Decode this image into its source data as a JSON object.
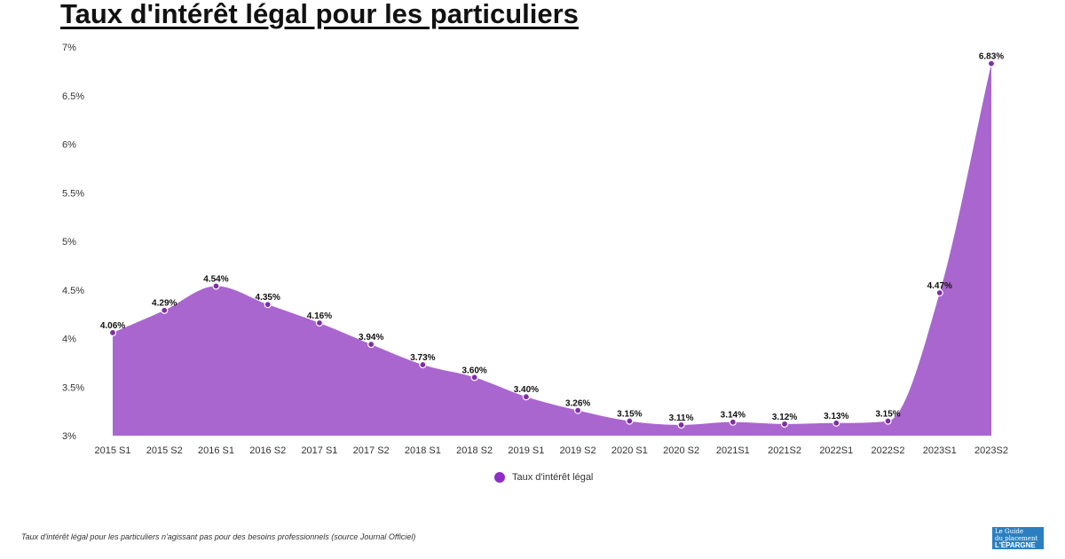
{
  "title": "Taux d'intérêt légal pour les particuliers",
  "footer": "Taux d'intérêt légal pour les particuliers n'agissant pas pour des besoins professionnels (source Journal Officiel)",
  "logo_text": "Le Guide du Placement L'ÉPARGNE",
  "colors": {
    "area": "#a966cf",
    "point": "#7d2fa6",
    "legend": "#8d2fc7"
  },
  "chart_data": {
    "type": "area",
    "title": "Taux d'intérêt légal pour les particuliers",
    "categories": [
      "2015 S1",
      "2015 S2",
      "2016 S1",
      "2016 S2",
      "2017 S1",
      "2017 S2",
      "2018 S1",
      "2018 S2",
      "2019 S1",
      "2019 S2",
      "2020 S1",
      "2020 S2",
      "2021S1",
      "2021S2",
      "2022S1",
      "2022S2",
      "2023S1",
      "2023S2"
    ],
    "series": [
      {
        "name": "Taux d'intérêt légal",
        "values": [
          4.06,
          4.29,
          4.54,
          4.35,
          4.16,
          3.94,
          3.73,
          3.6,
          3.4,
          3.26,
          3.15,
          3.11,
          3.14,
          3.12,
          3.13,
          3.15,
          4.47,
          6.83
        ]
      }
    ],
    "data_labels": [
      "4.06%",
      "4.29%",
      "4.54%",
      "4.35%",
      "4.16%",
      "3.94%",
      "3.73%",
      "3.60%",
      "3.40%",
      "3.26%",
      "3.15%",
      "3.11%",
      "3.14%",
      "3.12%",
      "3.13%",
      "3.15%",
      "4.47%",
      "6.83%"
    ],
    "ylim": [
      3,
      7
    ],
    "yticks": [
      "3%",
      "3.5%",
      "4%",
      "4.5%",
      "5%",
      "5.5%",
      "6%",
      "6.5%",
      "7%"
    ],
    "grid": false,
    "legend": "bottom"
  }
}
